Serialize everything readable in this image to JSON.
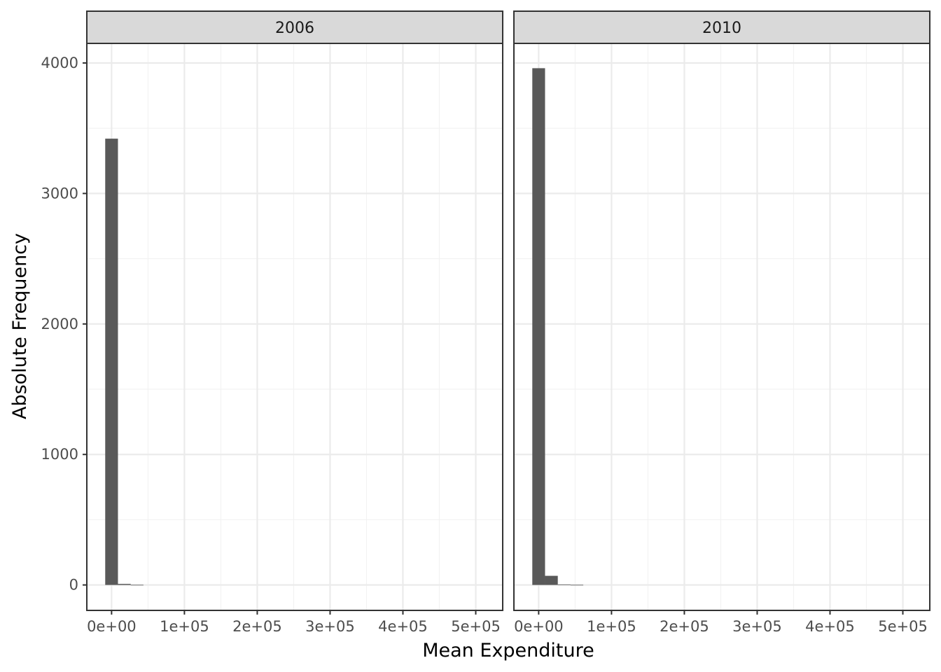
{
  "chart_data": {
    "type": "bar",
    "subtype": "histogram",
    "facet_layout": "1 row x 2 columns",
    "xlabel": "Mean Expenditure",
    "ylabel": "Absolute Frequency",
    "xlim": [
      -34000,
      537000
    ],
    "ylim": [
      -195,
      4150
    ],
    "x_ticks": [
      0,
      100000,
      200000,
      300000,
      400000,
      500000
    ],
    "x_tick_labels": [
      "0e+00",
      "1e+05",
      "2e+05",
      "3e+05",
      "4e+05",
      "5e+05"
    ],
    "y_ticks": [
      0,
      1000,
      2000,
      3000,
      4000
    ],
    "y_tick_labels": [
      "0",
      "1000",
      "2000",
      "3000",
      "4000"
    ],
    "bin_width": 17500,
    "grid": "on",
    "bar_color": "#595959",
    "panels": [
      {
        "label": "2006",
        "bins": [
          {
            "x0": -8750,
            "x1": 8750,
            "count": 3420
          },
          {
            "x0": 8750,
            "x1": 26250,
            "count": 8
          },
          {
            "x0": 26250,
            "x1": 43750,
            "count": 1
          },
          {
            "x0": 43750,
            "x1": 61250,
            "count": 0
          },
          {
            "x0": 61250,
            "x1": 78750,
            "count": 0
          },
          {
            "x0": 78750,
            "x1": 96250,
            "count": 0
          }
        ]
      },
      {
        "label": "2010",
        "bins": [
          {
            "x0": -8750,
            "x1": 8750,
            "count": 3960
          },
          {
            "x0": 8750,
            "x1": 26250,
            "count": 70
          },
          {
            "x0": 26250,
            "x1": 43750,
            "count": 4
          },
          {
            "x0": 43750,
            "x1": 61250,
            "count": 1
          },
          {
            "x0": 61250,
            "x1": 78750,
            "count": 0
          },
          {
            "x0": 78750,
            "x1": 96250,
            "count": 0
          }
        ]
      }
    ]
  }
}
